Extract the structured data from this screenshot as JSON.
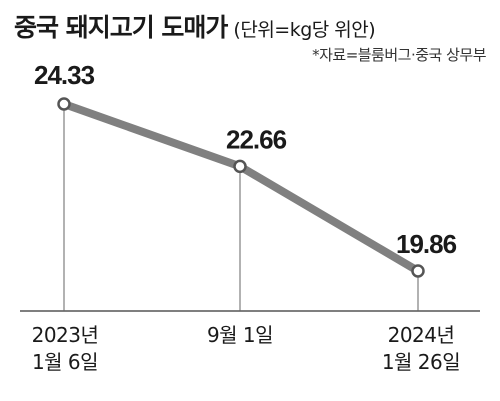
{
  "header": {
    "title": "중국 돼지고기 도매가",
    "unit": "(단위=kg당 위안)",
    "source": "*자료=블룸버그·중국 상무부"
  },
  "chart_data": {
    "type": "line",
    "title": "중국 돼지고기 도매가",
    "unit_label": "(단위=kg당 위안)",
    "source": "*자료=블룸버그·중국 상무부",
    "x_labels": [
      [
        "2023년",
        "1월 6일"
      ],
      [
        "9월 1일"
      ],
      [
        "2024년",
        "1월 26일"
      ]
    ],
    "x": [
      "2023-01-06",
      "2023-09-01",
      "2024-01-26"
    ],
    "values": [
      24.33,
      22.66,
      19.86
    ],
    "value_labels": [
      "24.33",
      "22.66",
      "19.86"
    ],
    "ylim": [
      17.0,
      25.5
    ],
    "grid": false,
    "legend": "none",
    "colors": {
      "line": "#808080",
      "marker_fill": "#ffffff",
      "baseline": "#555555",
      "dropline": "#666666"
    }
  }
}
